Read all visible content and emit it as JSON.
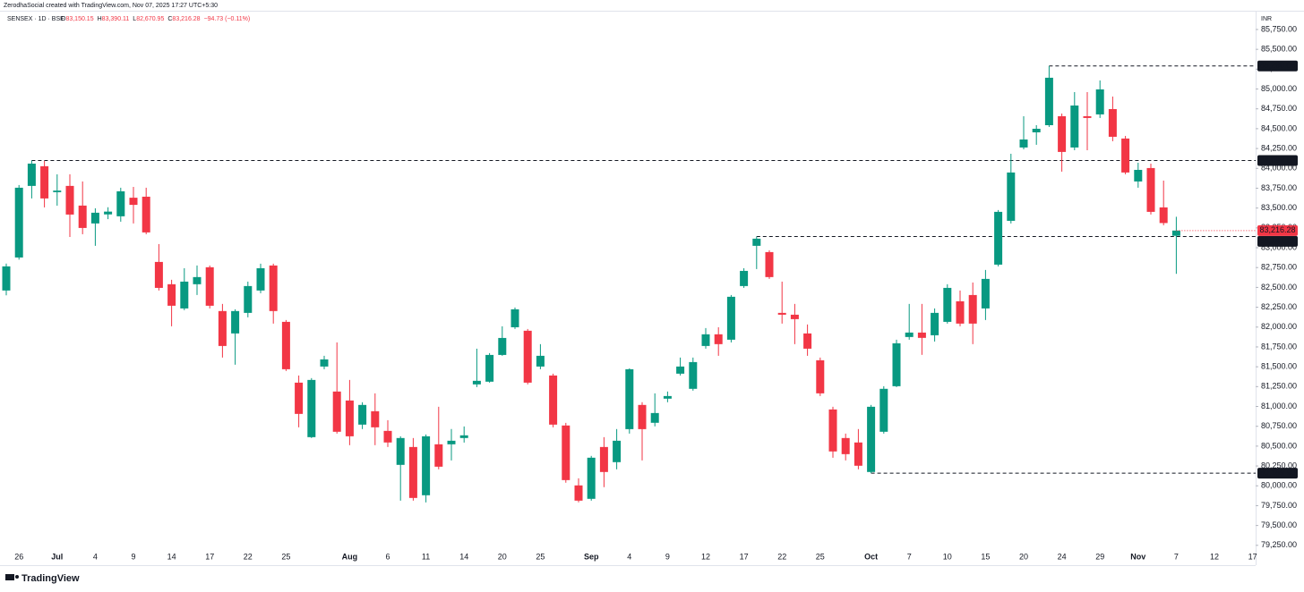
{
  "chart_data": {
    "type": "candlestick",
    "credit": "ZerodhaSocial created with TradingView.com, Nov 07, 2025 17:27 UTC+5:30",
    "title": "SENSEX · 1D · BSE",
    "legend_values": [
      {
        "key": "O",
        "text": "83,150.15"
      },
      {
        "key": "H",
        "text": "83,390.11"
      },
      {
        "key": "L",
        "text": "82,670.95"
      },
      {
        "key": "C",
        "text": "83,216.28"
      }
    ],
    "change": "−94.73 (−0.11%)",
    "currency": "INR",
    "brand": "TradingView",
    "up_color": "#089981",
    "down_color": "#f23645",
    "categories": [
      null,
      "26",
      null,
      null,
      "Jul",
      null,
      null,
      "4",
      null,
      null,
      "9",
      null,
      null,
      "14",
      null,
      null,
      "17",
      null,
      null,
      "22",
      null,
      null,
      "25",
      null,
      null,
      null,
      null,
      "Aug",
      null,
      null,
      "6",
      null,
      null,
      "11",
      null,
      null,
      "14",
      null,
      null,
      "20",
      null,
      null,
      "25",
      null,
      null,
      null,
      "Sep",
      null,
      null,
      "4",
      null,
      null,
      "9",
      null,
      null,
      "12",
      null,
      null,
      "17",
      null,
      null,
      "22",
      null,
      null,
      "25",
      null,
      null,
      null,
      "Oct",
      null,
      null,
      "7",
      null,
      null,
      "10",
      null,
      null,
      "15",
      null,
      null,
      "20",
      null,
      null,
      "24",
      null,
      null,
      "29",
      null,
      null,
      "Nov",
      null,
      null,
      "7",
      null,
      null,
      "12",
      null,
      null,
      "17"
    ],
    "open": [
      82461,
      82877,
      83779,
      84027,
      83700,
      83779,
      83531,
      83306,
      83420,
      83396,
      83630,
      83643,
      82821,
      82540,
      82235,
      82540,
      82754,
      82202,
      81920,
      82179,
      82461,
      82776,
      82066,
      81300,
      80613,
      81503,
      81188,
      81075,
      80771,
      80940,
      80692,
      80264,
      80489,
      79881,
      80523,
      80523,
      80602,
      81278,
      81312,
      81649,
      81998,
      81954,
      81503,
      81390,
      80760,
      80005,
      79836,
      80489,
      80298,
      80714,
      81019,
      80794,
      81098,
      81413,
      81222,
      81762,
      81909,
      81841,
      82517,
      83024,
      82945,
      82179,
      82156,
      81920,
      81582,
      80962,
      80602,
      80546,
      80174,
      80681,
      81255,
      81875,
      81931,
      81897,
      82066,
      82325,
      82404,
      82235,
      82787,
      83339,
      84263,
      84454,
      84544,
      84657,
      84263,
      84657,
      84680,
      84747,
      84376,
      83835,
      84004,
      83508,
      83150.15,
      null,
      null,
      null,
      null,
      null,
      null
    ],
    "high": [
      82800,
      83790,
      84099.53,
      84094,
      83925,
      83925,
      83835,
      83497,
      83510,
      83756,
      83767,
      83756,
      83046,
      82596,
      82742,
      82776,
      82776,
      82292,
      82224,
      82573,
      82799,
      82799,
      82089,
      81390,
      81357,
      81638,
      81807,
      81334,
      81053,
      81165,
      80827,
      80624,
      80602,
      80647,
      80996,
      80715,
      80748,
      81728,
      81672,
      82010,
      82247,
      81976,
      81785,
      81413,
      80793,
      80095,
      80377,
      80613,
      80715,
      81480,
      81053,
      81165,
      81188,
      81616,
      81616,
      81987,
      81998,
      82404,
      82742,
      83141.21,
      82968,
      82573,
      82292,
      82033,
      81616,
      80996,
      80658,
      80715,
      81019,
      81255,
      81841,
      82292,
      82292,
      82235,
      82540,
      82461,
      82562,
      82720,
      83475,
      84184,
      84657,
      84544,
      85290.06,
      84691,
      84961,
      84961,
      85108,
      84905,
      84409,
      84071,
      84060,
      83846,
      83390.11,
      null,
      null,
      null,
      null,
      null,
      null
    ],
    "low": [
      82400,
      82850,
      83621,
      83508,
      83530,
      83136,
      83170,
      83024,
      83360,
      83328,
      83306,
      83170,
      82461,
      82010,
      82213,
      82404,
      82235,
      81616,
      81526,
      82123,
      82427,
      82044,
      81447,
      80737,
      80602,
      81469,
      80658,
      80512,
      80715,
      80512,
      80489,
      79813,
      79813,
      79791,
      80208,
      80320,
      80545,
      81244,
      81300,
      81638,
      81976,
      81278,
      81469,
      80737,
      80039,
      79791,
      79813,
      79983,
      80208,
      80658,
      80320,
      80749,
      81053,
      81390,
      81199,
      81728,
      81638,
      81807,
      82494,
      82731,
      82607,
      82044,
      81785,
      81638,
      81131,
      80354,
      80320,
      80208,
      80159.9,
      80658,
      81244,
      81841,
      81650,
      81818,
      82044,
      82010,
      81785,
      82089,
      82765,
      83306,
      84240,
      84297,
      84522,
      83959,
      84229,
      84229,
      84635,
      84342,
      83925,
      83756,
      83418,
      83283,
      82670.95,
      null,
      null,
      null,
      null,
      null,
      null
    ],
    "close": [
      82765,
      83756,
      84060,
      83621,
      83720,
      83418,
      83249,
      83441,
      83455,
      83711,
      83540,
      83193,
      82494,
      82269,
      82573,
      82630,
      82269,
      81762,
      82202,
      82517,
      82742,
      82202,
      81469,
      80906,
      81334,
      81593,
      80681,
      80624,
      81019,
      80737,
      80546,
      80602,
      79847,
      80624,
      80241,
      80568,
      80636,
      81323,
      81649,
      81863,
      82224,
      81300,
      81638,
      80771,
      80072,
      79813,
      80354,
      80174,
      80568,
      81469,
      80714,
      80917,
      81131,
      81503,
      81559,
      81909,
      81785,
      82382,
      82708,
      83114,
      82630,
      82156,
      82100,
      81728,
      81165,
      80433,
      80399,
      80253,
      80996,
      81222,
      81796,
      81931,
      81864,
      82179,
      82494,
      82044,
      82044,
      82607,
      83452,
      83948,
      84364,
      84499,
      85142,
      84207,
      84792,
      84635,
      84995,
      84398,
      83948,
      83981,
      83452,
      83311.01,
      83216.28,
      null,
      null,
      null,
      null,
      null,
      null
    ],
    "close_label": "83,216.28",
    "levels": [
      {
        "value": 85290.06,
        "label": "85,290.06"
      },
      {
        "value": 84099.53,
        "label": "84,099.53"
      },
      {
        "value": 83141.21,
        "label": "83,141.21"
      },
      {
        "value": 80159.9,
        "label": "80,159.90"
      }
    ],
    "ylim": [
      79000,
      85975
    ],
    "yticks": [
      {
        "value": 79250,
        "label": "79,250.00"
      },
      {
        "value": 79500,
        "label": "79,500.00"
      },
      {
        "value": 79750,
        "label": "79,750.00"
      },
      {
        "value": 80000,
        "label": "80,000.00"
      },
      {
        "value": 80250,
        "label": "80,250.00"
      },
      {
        "value": 80500,
        "label": "80,500.00"
      },
      {
        "value": 80750,
        "label": "80,750.00"
      },
      {
        "value": 81000,
        "label": "81,000.00"
      },
      {
        "value": 81250,
        "label": "81,250.00"
      },
      {
        "value": 81500,
        "label": "81,500.00"
      },
      {
        "value": 81750,
        "label": "81,750.00"
      },
      {
        "value": 82000,
        "label": "82,000.00"
      },
      {
        "value": 82250,
        "label": "82,250.00"
      },
      {
        "value": 82500,
        "label": "82,500.00"
      },
      {
        "value": 82750,
        "label": "82,750.00"
      },
      {
        "value": 83000,
        "label": "83,000.00"
      },
      {
        "value": 83250,
        "label": "83,250.00"
      },
      {
        "value": 83500,
        "label": "83,500.00"
      },
      {
        "value": 83750,
        "label": "83,750.00"
      },
      {
        "value": 84000,
        "label": "84,000.00"
      },
      {
        "value": 84250,
        "label": "84,250.00"
      },
      {
        "value": 84500,
        "label": "84,500.00"
      },
      {
        "value": 84750,
        "label": "84,750.00"
      },
      {
        "value": 85000,
        "label": "85,000.00"
      },
      {
        "value": 85250,
        "label": "85,250.00"
      },
      {
        "value": 85500,
        "label": "85,500.00"
      },
      {
        "value": 85750,
        "label": "85,750.00"
      }
    ],
    "grid": false
  }
}
